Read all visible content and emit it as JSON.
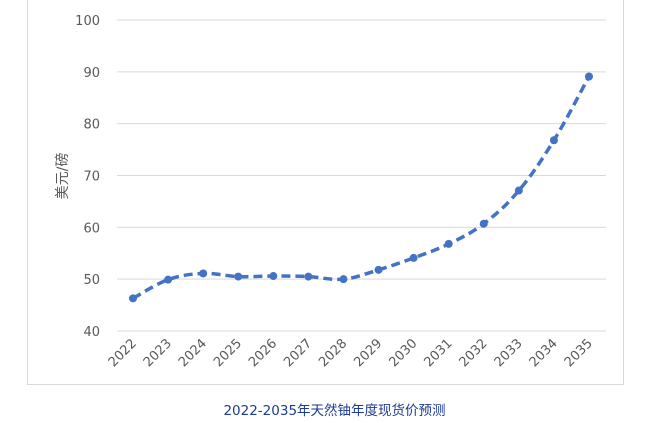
{
  "caption": "2022-2035年天然铀年度现货价预测",
  "chart_data": {
    "type": "line",
    "title": "",
    "xlabel": "",
    "ylabel": "美元/磅",
    "categories": [
      "2022",
      "2023",
      "2024",
      "2025",
      "2026",
      "2027",
      "2028",
      "2029",
      "2030",
      "2031",
      "2032",
      "2033",
      "2034",
      "2035"
    ],
    "series": [
      {
        "values": [
          46.3,
          49.9,
          51.1,
          50.5,
          50.6,
          50.5,
          50.0,
          51.8,
          54.1,
          56.8,
          60.7,
          67.1,
          76.8,
          89.1
        ]
      }
    ],
    "ylim": [
      40,
      100
    ],
    "yticks": [
      40,
      50,
      60,
      70,
      80,
      90,
      100
    ],
    "grid": true,
    "line_style": "dashed",
    "color": "#4472C4"
  }
}
